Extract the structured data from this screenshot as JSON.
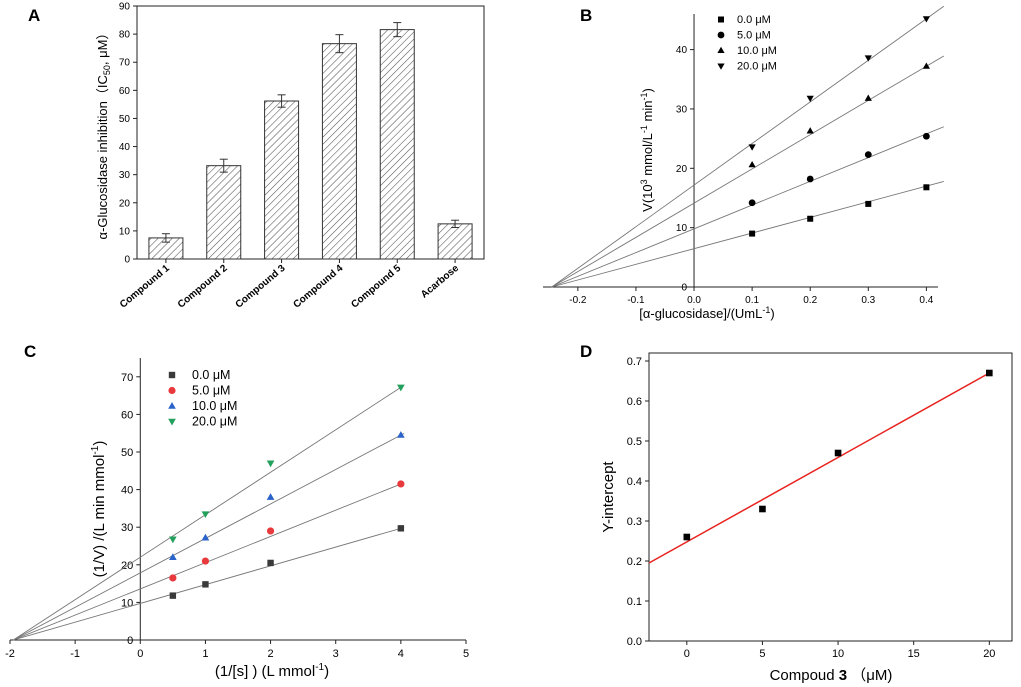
{
  "chart_data": [
    {
      "panel": "A",
      "type": "bar",
      "ylabel": "α-Glucosidase inhibition（IC50, μM）",
      "ylabel_parts": [
        "α-Glucosidase inhibition（IC",
        "50",
        ", μM）"
      ],
      "xlabel": "",
      "ylim": [
        0,
        90
      ],
      "yticks": [
        0,
        10,
        20,
        30,
        40,
        50,
        60,
        70,
        80,
        90
      ],
      "categories": [
        "Compound 1",
        "Compound 2",
        "Compound 3",
        "Compound 4",
        "Compound 5",
        "Acarbose"
      ],
      "values": [
        7.5,
        33.2,
        56.2,
        76.6,
        81.6,
        12.5
      ],
      "errors": [
        1.5,
        2.3,
        2.2,
        3.2,
        2.5,
        1.3
      ]
    },
    {
      "panel": "B",
      "type": "scatter",
      "xlabel": "[α-glucosidase]/(UmL-1)",
      "xlabel_parts": [
        "[α-glucosidase]/(UmL",
        "-1",
        ")"
      ],
      "ylabel": "V(10³ mmol/L-1 min-1)",
      "ylabel_parts": [
        "V(10",
        "3",
        " mmol/L",
        "-1",
        " min",
        "-1",
        ")"
      ],
      "xlim": [
        -0.26,
        0.42
      ],
      "ylim": [
        0,
        46
      ],
      "xticks": [
        -0.2,
        -0.1,
        0.0,
        0.1,
        0.2,
        0.3,
        0.4
      ],
      "xtick_labels": [
        "-0.2",
        "-0.1",
        "0.0",
        "0.1",
        "0.2",
        "0.3",
        "0.4"
      ],
      "yticks": [
        0,
        10,
        20,
        30,
        40
      ],
      "series": [
        {
          "name": "0.0 μM",
          "marker": "square",
          "x": [
            0.1,
            0.2,
            0.3,
            0.4
          ],
          "y": [
            9.0,
            11.5,
            14.0,
            16.8
          ],
          "fit": [
            -0.25,
            0.4,
            0.0,
            17.0
          ]
        },
        {
          "name": "5.0 μM",
          "marker": "circle",
          "x": [
            0.1,
            0.2,
            0.3,
            0.4
          ],
          "y": [
            14.2,
            18.2,
            22.3,
            25.4
          ],
          "fit": [
            -0.25,
            0.4,
            0.0,
            25.8
          ]
        },
        {
          "name": "10.0 μM",
          "marker": "triangle-up",
          "x": [
            0.1,
            0.2,
            0.3,
            0.4
          ],
          "y": [
            20.6,
            26.3,
            31.8,
            37.2
          ],
          "fit": [
            -0.25,
            0.4,
            0.0,
            37.2
          ]
        },
        {
          "name": "20.0 μM",
          "marker": "triangle-down",
          "x": [
            0.1,
            0.2,
            0.3,
            0.4
          ],
          "y": [
            23.6,
            31.8,
            38.6,
            45.2
          ],
          "fit": [
            -0.25,
            0.4,
            0.0,
            45.2
          ]
        }
      ]
    },
    {
      "panel": "C",
      "type": "scatter",
      "xlabel": "(1/[s] ) (L mmol-1)",
      "xlabel_parts": [
        "(1/[s] ) (L mmol",
        "-1",
        ")"
      ],
      "ylabel": "(1/V) /(L min mmol-1)",
      "ylabel_parts": [
        "(1/V) /(L min mmol",
        "-1",
        ")"
      ],
      "xlim": [
        -2,
        5
      ],
      "ylim": [
        0,
        75
      ],
      "xticks": [
        -2,
        -1,
        0,
        1,
        2,
        3,
        4,
        5
      ],
      "yticks": [
        0,
        10,
        20,
        30,
        40,
        50,
        60,
        70
      ],
      "series": [
        {
          "name": "0.0  μM",
          "color": "#3a3a3a",
          "marker": "square",
          "x": [
            0.5,
            1,
            2,
            4
          ],
          "y": [
            11.8,
            14.8,
            20.5,
            29.7
          ],
          "fit": [
            -1.95,
            4.05,
            0.0,
            29.7
          ]
        },
        {
          "name": "5.0  μM",
          "color": "#e8393d",
          "marker": "circle",
          "x": [
            0.5,
            1,
            2,
            4
          ],
          "y": [
            16.5,
            21.0,
            29.0,
            41.5
          ],
          "fit": [
            -1.95,
            4.05,
            0.0,
            41.5
          ]
        },
        {
          "name": "10.0  μM",
          "color": "#2a63c9",
          "marker": "triangle-up",
          "x": [
            0.5,
            1,
            2,
            4
          ],
          "y": [
            22.0,
            27.2,
            38.0,
            54.5
          ],
          "fit": [
            -1.95,
            4.05,
            0.0,
            54.5
          ]
        },
        {
          "name": "20.0  μM",
          "color": "#23a05c",
          "marker": "triangle-down",
          "x": [
            0.5,
            1,
            2,
            4
          ],
          "y": [
            26.8,
            33.5,
            47.0,
            67.2
          ],
          "fit": [
            -1.95,
            4.05,
            0.0,
            67.2
          ]
        }
      ]
    },
    {
      "panel": "D",
      "type": "scatter",
      "xlabel": "Compoud 3 （μM)",
      "xlabel_parts": [
        "Compoud ",
        "3",
        " （μM)"
      ],
      "ylabel": "Y-intercept",
      "xlim": [
        -2.5,
        21.5
      ],
      "ylim": [
        0,
        0.72
      ],
      "xticks": [
        0,
        5,
        10,
        15,
        20
      ],
      "yticks": [
        0.0,
        0.1,
        0.2,
        0.3,
        0.4,
        0.5,
        0.6,
        0.7
      ],
      "ytick_labels": [
        "0.0",
        "0.1",
        "0.2",
        "0.3",
        "0.4",
        "0.5",
        "0.6",
        "0.7"
      ],
      "fit_color": "#e8231f",
      "series": [
        {
          "name": "",
          "marker": "square",
          "x": [
            0,
            5,
            10,
            20
          ],
          "y": [
            0.26,
            0.33,
            0.47,
            0.67
          ],
          "fit": [
            -2.5,
            20,
            0.195,
            0.67
          ]
        }
      ]
    }
  ]
}
